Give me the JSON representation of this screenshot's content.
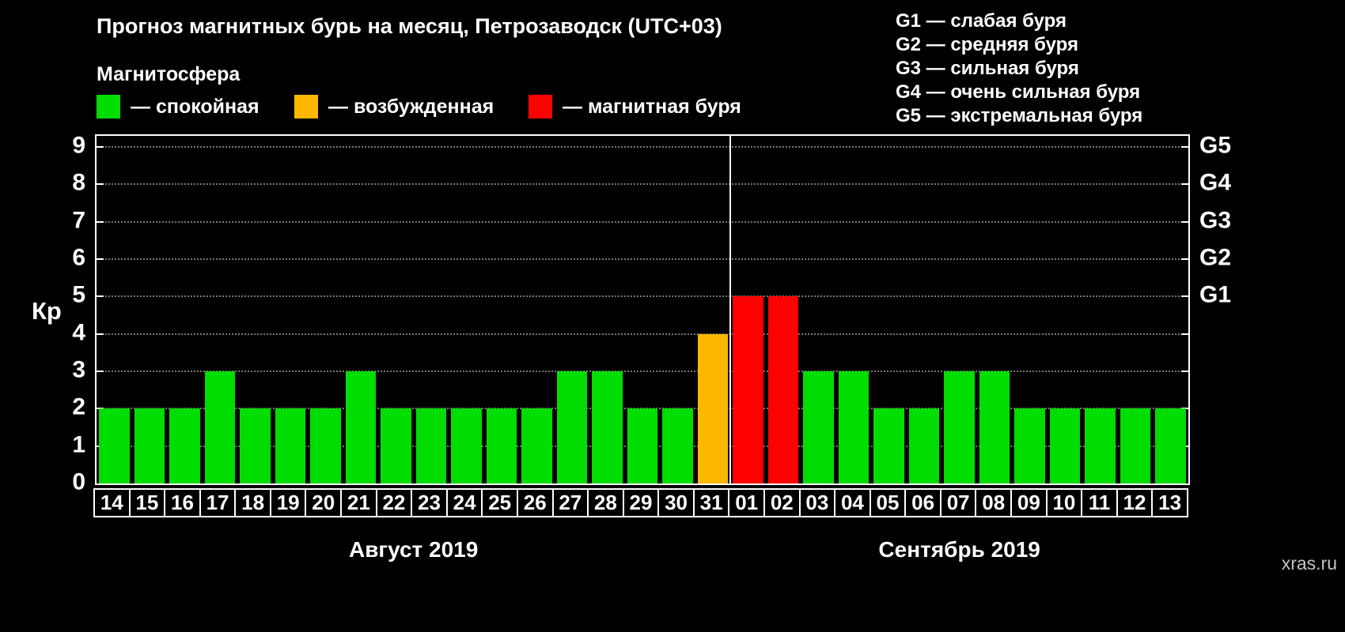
{
  "header": {
    "title": "Прогноз магнитных бурь на месяц, Петрозаводск (UTC+03)"
  },
  "magnetosphere": {
    "heading": "Магнитосфера",
    "legend": [
      {
        "key": "quiet",
        "label": "— спокойная",
        "color": "#00dd00"
      },
      {
        "key": "excited",
        "label": "— возбужденная",
        "color": "#ffb800"
      },
      {
        "key": "storm",
        "label": "— магнитная буря",
        "color": "#ff0000"
      }
    ]
  },
  "g_scale_legend": [
    "G1 — слабая буря",
    "G2 — средняя буря",
    "G3 — сильная буря",
    "G4 — очень сильная буря",
    "G5 — экстремальная буря"
  ],
  "watermark": "xras.ru",
  "chart_data": {
    "type": "bar",
    "title": "Прогноз магнитных бурь на месяц, Петрозаводск (UTC+03)",
    "ylabel": "Кр",
    "ylim": [
      0,
      9
    ],
    "yticks": [
      0,
      1,
      2,
      3,
      4,
      5,
      6,
      7,
      8,
      9
    ],
    "grid": "dotted",
    "legend_position": "top",
    "right_axis": [
      {
        "label": "G1",
        "value": 5
      },
      {
        "label": "G2",
        "value": 6
      },
      {
        "label": "G3",
        "value": 7
      },
      {
        "label": "G4",
        "value": 8
      },
      {
        "label": "G5",
        "value": 9
      }
    ],
    "categories": [
      "14",
      "15",
      "16",
      "17",
      "18",
      "19",
      "20",
      "21",
      "22",
      "23",
      "24",
      "25",
      "26",
      "27",
      "28",
      "29",
      "30",
      "31",
      "01",
      "02",
      "03",
      "04",
      "05",
      "06",
      "07",
      "08",
      "09",
      "10",
      "11",
      "12",
      "13"
    ],
    "values": [
      2,
      2,
      2,
      3,
      2,
      2,
      2,
      3,
      2,
      2,
      2,
      2,
      2,
      3,
      3,
      2,
      2,
      4,
      5,
      5,
      3,
      3,
      2,
      2,
      3,
      3,
      2,
      2,
      2,
      2,
      2
    ],
    "bar_colors": {
      "quiet_max": 3,
      "excited_max": 4,
      "quiet": "#00dd00",
      "excited": "#ffb800",
      "storm": "#ff0000"
    },
    "months": [
      {
        "label": "Август 2019",
        "start_index": 0,
        "count": 18
      },
      {
        "label": "Сентябрь 2019",
        "start_index": 18,
        "count": 13
      }
    ]
  }
}
